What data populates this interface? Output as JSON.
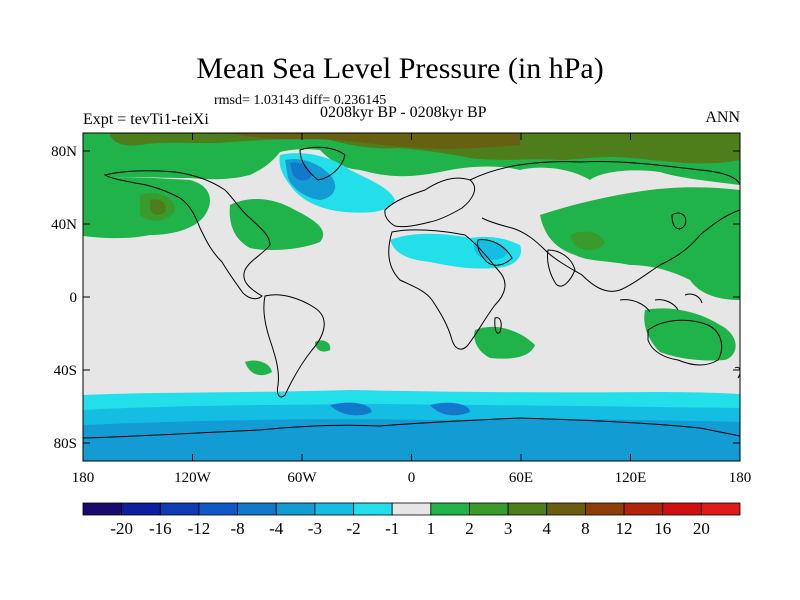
{
  "header": {
    "title": "Mean Sea Level Pressure (in hPa)",
    "stats": "rmsd= 1.03143  diff= 0.236145",
    "period": "0208kyr BP - 0208kyr BP",
    "experiment": "Expt = tevTi1-teiXi",
    "season": "ANN"
  },
  "map": {
    "type": "global-anomaly-map",
    "projection": "cylindrical-equidistant",
    "lat_range": [
      -90,
      90
    ],
    "lon_range": [
      -180,
      180
    ],
    "lat_ticks": [
      "80N",
      "40N",
      "0",
      "40S",
      "80S"
    ],
    "lon_ticks": [
      "180",
      "120W",
      "60W",
      "0",
      "60E",
      "120E",
      "180"
    ]
  },
  "colorbar": {
    "labels": [
      "-20",
      "-16",
      "-12",
      "-8",
      "-4",
      "-3",
      "-2",
      "-1",
      "1",
      "2",
      "3",
      "4",
      "8",
      "12",
      "16",
      "20"
    ],
    "colors": [
      "#1b0a6e",
      "#0d1f9e",
      "#0f3cb4",
      "#1057c8",
      "#1278cc",
      "#139bd4",
      "#14bde2",
      "#22dfe9",
      "#e6e6e6",
      "#1fb34a",
      "#3a9a2c",
      "#4e7d1c",
      "#6a5d12",
      "#8e3e0b",
      "#b0250a",
      "#d01010",
      "#e01a1a"
    ]
  },
  "legend_colors": {
    "neutral": "#e6e6e6",
    "neg_cyan": "#22dfe9",
    "neg_lightblue": "#14bde2",
    "neg_blue": "#139bd4",
    "pos_green": "#1fb34a",
    "pos_dkgreen": "#3a9a2c",
    "pos_olive": "#4e7d1c",
    "pos_brown": "#6a5d12"
  }
}
